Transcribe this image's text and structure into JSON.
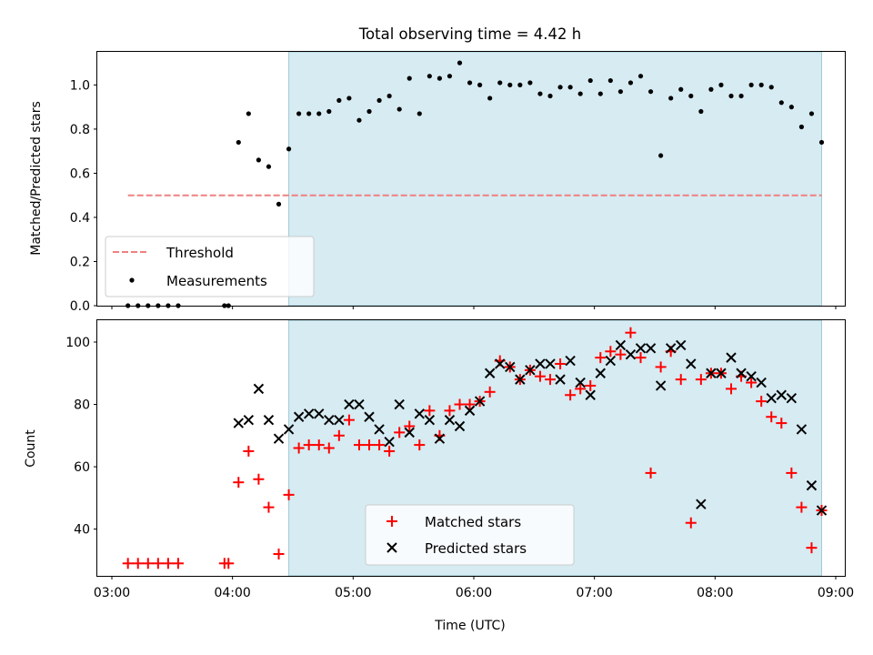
{
  "chart_data": [
    {
      "type": "scatter",
      "title": "Total observing time = 4.42 h",
      "ylabel": "Matched/Predicted stars",
      "xlabel": "",
      "xlim": [
        "03:00",
        "09:00"
      ],
      "ylim": [
        0,
        1.15
      ],
      "yticks": [
        "0.0",
        "0.2",
        "0.4",
        "0.6",
        "0.8",
        "1.0"
      ],
      "shaded_span": [
        "04:28",
        "08:53"
      ],
      "legend": {
        "position": "lower-left",
        "entries": [
          "Threshold",
          "Measurements"
        ]
      },
      "threshold": {
        "name": "Threshold",
        "value": 0.5,
        "x_range": [
          "03:08",
          "08:53"
        ],
        "color": "#f08080"
      },
      "series": [
        {
          "name": "Measurements",
          "color": "#000000",
          "x": [
            "03:08",
            "03:13",
            "03:18",
            "03:23",
            "03:28",
            "03:33",
            "03:56",
            "03:58",
            "04:03",
            "04:08",
            "04:13",
            "04:18",
            "04:23",
            "04:28",
            "04:33",
            "04:38",
            "04:43",
            "04:48",
            "04:53",
            "04:58",
            "05:03",
            "05:08",
            "05:13",
            "05:18",
            "05:23",
            "05:28",
            "05:33",
            "05:38",
            "05:43",
            "05:48",
            "05:53",
            "05:58",
            "06:03",
            "06:08",
            "06:13",
            "06:18",
            "06:23",
            "06:28",
            "06:33",
            "06:38",
            "06:43",
            "06:48",
            "06:53",
            "06:58",
            "07:03",
            "07:08",
            "07:13",
            "07:18",
            "07:23",
            "07:28",
            "07:33",
            "07:38",
            "07:43",
            "07:48",
            "07:53",
            "07:58",
            "08:03",
            "08:08",
            "08:13",
            "08:18",
            "08:23",
            "08:28",
            "08:33",
            "08:38",
            "08:43",
            "08:48",
            "08:53"
          ],
          "y": [
            0,
            0,
            0,
            0,
            0,
            0,
            0,
            0,
            0.74,
            0.87,
            0.66,
            0.63,
            0.46,
            0.71,
            0.87,
            0.87,
            0.87,
            0.88,
            0.93,
            0.94,
            0.84,
            0.88,
            0.93,
            0.95,
            0.89,
            1.03,
            0.87,
            1.04,
            1.03,
            1.04,
            1.1,
            1.01,
            1.0,
            0.94,
            1.01,
            1.0,
            1.0,
            1.01,
            0.96,
            0.95,
            0.99,
            0.99,
            0.96,
            1.02,
            0.96,
            1.02,
            0.97,
            1.01,
            1.04,
            0.97,
            0.68,
            0.94,
            0.98,
            0.95,
            0.88,
            0.98,
            1.0,
            0.95,
            0.95,
            1.0,
            1.0,
            0.99,
            0.92,
            0.9,
            0.81,
            0.87,
            0.74
          ]
        }
      ]
    },
    {
      "type": "scatter",
      "title": "",
      "xlabel": "Time (UTC)",
      "ylabel": "Count",
      "xlim": [
        "03:00",
        "09:00"
      ],
      "ylim": [
        25,
        107
      ],
      "xticks": [
        "03:00",
        "04:00",
        "05:00",
        "06:00",
        "07:00",
        "08:00",
        "09:00"
      ],
      "yticks": [
        "40",
        "60",
        "80",
        "100"
      ],
      "shaded_span": [
        "04:28",
        "08:53"
      ],
      "legend": {
        "position": "lower-center",
        "entries": [
          "Matched stars",
          "Predicted stars"
        ]
      },
      "series": [
        {
          "name": "Matched stars",
          "color": "#ff0000",
          "marker": "plus",
          "x": [
            "03:08",
            "03:13",
            "03:18",
            "03:23",
            "03:28",
            "03:33",
            "03:56",
            "03:58",
            "04:03",
            "04:08",
            "04:13",
            "04:18",
            "04:23",
            "04:28",
            "04:33",
            "04:38",
            "04:43",
            "04:48",
            "04:53",
            "04:58",
            "05:03",
            "05:08",
            "05:13",
            "05:18",
            "05:23",
            "05:28",
            "05:33",
            "05:38",
            "05:43",
            "05:48",
            "05:53",
            "05:58",
            "06:03",
            "06:08",
            "06:13",
            "06:18",
            "06:23",
            "06:28",
            "06:33",
            "06:38",
            "06:43",
            "06:48",
            "06:53",
            "06:58",
            "07:03",
            "07:08",
            "07:13",
            "07:18",
            "07:23",
            "07:28",
            "07:33",
            "07:38",
            "07:43",
            "07:48",
            "07:53",
            "07:58",
            "08:03",
            "08:08",
            "08:13",
            "08:18",
            "08:23",
            "08:28",
            "08:33",
            "08:38",
            "08:43",
            "08:48",
            "08:53"
          ],
          "y": [
            29,
            29,
            29,
            29,
            29,
            29,
            29,
            29,
            55,
            65,
            56,
            47,
            32,
            51,
            66,
            67,
            67,
            66,
            70,
            75,
            67,
            67,
            67,
            65,
            71,
            73,
            67,
            78,
            70,
            78,
            80,
            80,
            81,
            84,
            94,
            92,
            88,
            91,
            89,
            88,
            93,
            83,
            85,
            86,
            95,
            97,
            96,
            103,
            95,
            58,
            92,
            97,
            88,
            42,
            88,
            90,
            90,
            85,
            89,
            87,
            81,
            76,
            74,
            58,
            47,
            34,
            46
          ]
        },
        {
          "name": "Predicted stars",
          "color": "#000000",
          "marker": "x",
          "x": [
            "04:03",
            "04:08",
            "04:13",
            "04:18",
            "04:23",
            "04:28",
            "04:33",
            "04:38",
            "04:43",
            "04:48",
            "04:53",
            "04:58",
            "05:03",
            "05:08",
            "05:13",
            "05:18",
            "05:23",
            "05:28",
            "05:33",
            "05:38",
            "05:43",
            "05:48",
            "05:53",
            "05:58",
            "06:03",
            "06:08",
            "06:13",
            "06:18",
            "06:23",
            "06:28",
            "06:33",
            "06:38",
            "06:43",
            "06:48",
            "06:53",
            "06:58",
            "07:03",
            "07:08",
            "07:13",
            "07:18",
            "07:23",
            "07:28",
            "07:33",
            "07:38",
            "07:43",
            "07:48",
            "07:53",
            "07:58",
            "08:03",
            "08:08",
            "08:13",
            "08:18",
            "08:23",
            "08:28",
            "08:33",
            "08:38",
            "08:43",
            "08:48",
            "08:53"
          ],
          "y": [
            74,
            75,
            85,
            75,
            69,
            72,
            76,
            77,
            77,
            75,
            75,
            80,
            80,
            76,
            72,
            68,
            80,
            71,
            77,
            75,
            69,
            75,
            73,
            78,
            81,
            90,
            93,
            92,
            88,
            91,
            93,
            93,
            88,
            94,
            87,
            83,
            90,
            94,
            99,
            96,
            98,
            98,
            86,
            98,
            99,
            93,
            48,
            90,
            90,
            95,
            90,
            89,
            87,
            82,
            83,
            82,
            72,
            54,
            46
          ]
        }
      ]
    }
  ]
}
